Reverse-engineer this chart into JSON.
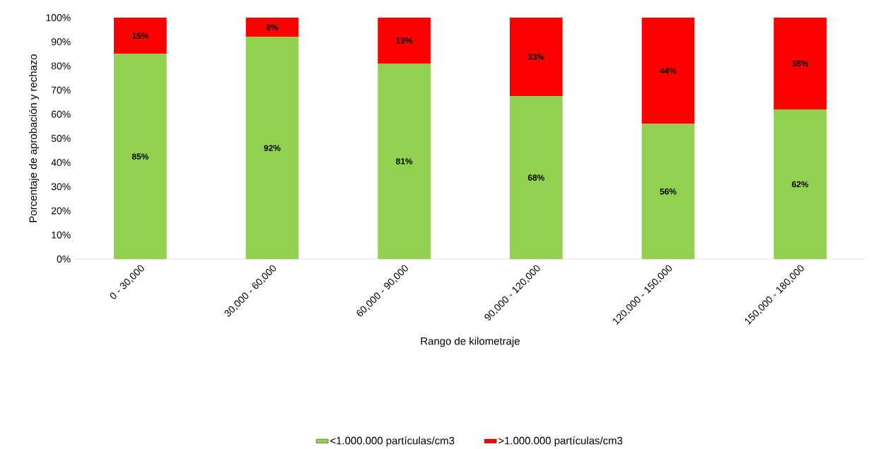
{
  "chart_data": {
    "type": "bar",
    "stacked": true,
    "xlabel": "Rango de kilometraje",
    "ylabel": "Porcentaje de aprobación y rechazo",
    "categories": [
      "0 - 30,000",
      "30,000 - 60,000",
      "60,000 - 90,000",
      "90,000 - 120,000",
      "120,000 - 150,000",
      "150,000 - 180,000"
    ],
    "series": [
      {
        "name": "<1.000.000 partículas/cm3",
        "color": "#92d050",
        "values": [
          85,
          92,
          81,
          67.5,
          56,
          62
        ],
        "value_labels": [
          "85%",
          "92%",
          "81%",
          "68%",
          "56%",
          "62%"
        ]
      },
      {
        "name": ">1.000.000 partículas/cm3",
        "color": "#ff0000",
        "values": [
          15,
          8,
          19,
          32.5,
          44,
          38
        ],
        "value_labels": [
          "15%",
          "8%",
          "19%",
          "33%",
          "44%",
          "38%"
        ]
      }
    ],
    "ylim": [
      0,
      100
    ],
    "yticks": [
      {
        "value": 0,
        "label": "0%"
      },
      {
        "value": 10,
        "label": "10%"
      },
      {
        "value": 20,
        "label": "20%"
      },
      {
        "value": 30,
        "label": "30%"
      },
      {
        "value": 40,
        "label": "40%"
      },
      {
        "value": 50,
        "label": "50%"
      },
      {
        "value": 60,
        "label": "60%"
      },
      {
        "value": 70,
        "label": "70%"
      },
      {
        "value": 80,
        "label": "80%"
      },
      {
        "value": 90,
        "label": "90%"
      },
      {
        "value": 100,
        "label": "100%"
      }
    ],
    "legend": "bottom",
    "grid": false
  }
}
